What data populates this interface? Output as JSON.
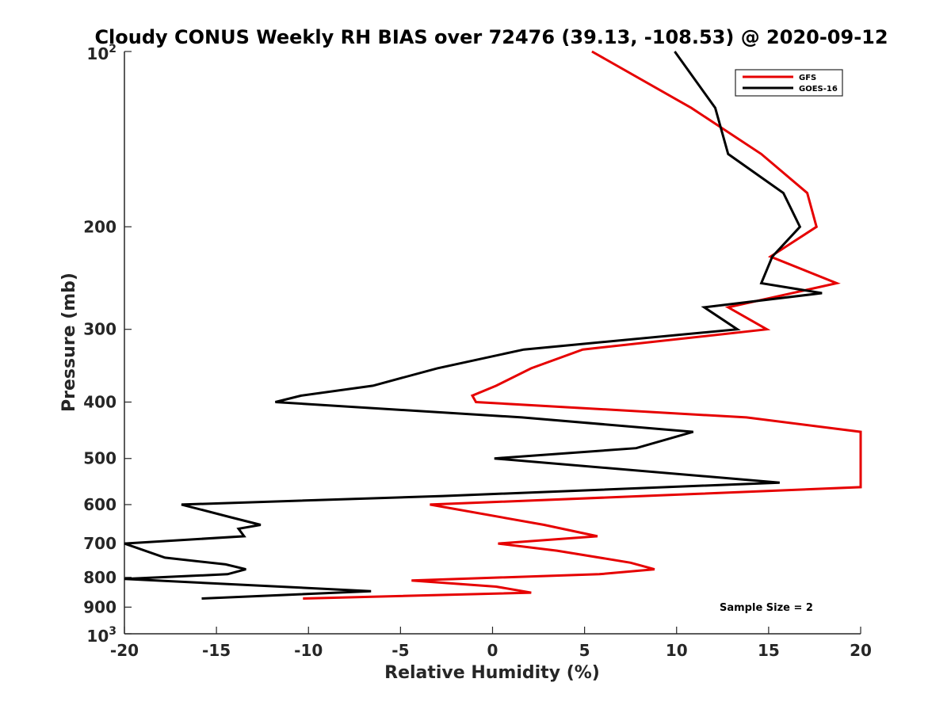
{
  "chart_data": {
    "type": "line",
    "title": "Cloudy CONUS Weekly RH BIAS over 72476 (39.13, -108.53) @ 2020-09-12",
    "xlabel": "Relative Humidity (%)",
    "ylabel": "Pressure (mb)",
    "xlim": [
      -20,
      20
    ],
    "ylim": [
      100,
      1000
    ],
    "y_scale": "log",
    "y_reversed": true,
    "grid": false,
    "legend_position": "top-right",
    "x_ticks": [
      "-20",
      "-15",
      "-10",
      "-5",
      "0",
      "5",
      "10",
      "15",
      "20"
    ],
    "y_ticks": [
      {
        "value": 100,
        "base": "10",
        "exp": "2"
      },
      {
        "value": 200,
        "label": "200"
      },
      {
        "value": 300,
        "label": "300"
      },
      {
        "value": 400,
        "label": "400"
      },
      {
        "value": 500,
        "label": "500"
      },
      {
        "value": 600,
        "label": "600"
      },
      {
        "value": 700,
        "label": "700"
      },
      {
        "value": 800,
        "label": "800"
      },
      {
        "value": 900,
        "label": "900"
      },
      {
        "value": 1000,
        "base": "10",
        "exp": "3"
      }
    ],
    "annotation": "Sample Size = 2",
    "series": [
      {
        "name": "GFS",
        "color": "#e60000",
        "points": [
          [
            5.4,
            100
          ],
          [
            10.8,
            125
          ],
          [
            14.6,
            150
          ],
          [
            17.1,
            175
          ],
          [
            17.6,
            200
          ],
          [
            15.1,
            225
          ],
          [
            18.7,
            250
          ],
          [
            12.8,
            275
          ],
          [
            14.9,
            300
          ],
          [
            4.9,
            325
          ],
          [
            2.1,
            350
          ],
          [
            0.2,
            375
          ],
          [
            -1.1,
            390
          ],
          [
            -0.9,
            400
          ],
          [
            13.8,
            425
          ],
          [
            20.0,
            450
          ],
          [
            20.0,
            560
          ],
          [
            11.1,
            575
          ],
          [
            -3.4,
            600
          ],
          [
            2.8,
            650
          ],
          [
            5.7,
            680
          ],
          [
            0.3,
            700
          ],
          [
            3.5,
            720
          ],
          [
            7.5,
            755
          ],
          [
            8.8,
            775
          ],
          [
            5.8,
            790
          ],
          [
            -4.4,
            810
          ],
          [
            0.2,
            830
          ],
          [
            2.1,
            850
          ],
          [
            -10.3,
            870
          ]
        ]
      },
      {
        "name": "GOES-16",
        "color": "#000000",
        "points": [
          [
            9.9,
            100
          ],
          [
            12.1,
            125
          ],
          [
            12.8,
            150
          ],
          [
            15.8,
            175
          ],
          [
            16.7,
            200
          ],
          [
            15.2,
            225
          ],
          [
            14.6,
            250
          ],
          [
            17.9,
            260
          ],
          [
            11.5,
            275
          ],
          [
            13.3,
            300
          ],
          [
            1.7,
            325
          ],
          [
            -3.0,
            350
          ],
          [
            -6.5,
            375
          ],
          [
            -10.4,
            390
          ],
          [
            -11.8,
            400
          ],
          [
            1.6,
            425
          ],
          [
            10.9,
            450
          ],
          [
            7.8,
            480
          ],
          [
            0.1,
            500
          ],
          [
            15.6,
            550
          ],
          [
            -2.7,
            580
          ],
          [
            -16.9,
            600
          ],
          [
            -14.3,
            630
          ],
          [
            -12.6,
            650
          ],
          [
            -13.8,
            660
          ],
          [
            -13.5,
            680
          ],
          [
            -20.0,
            700
          ],
          [
            -17.8,
            740
          ],
          [
            -14.5,
            760
          ],
          [
            -13.4,
            775
          ],
          [
            -14.4,
            790
          ],
          [
            -20.0,
            805
          ],
          [
            -6.6,
            845
          ],
          [
            -15.8,
            870
          ]
        ]
      }
    ]
  }
}
